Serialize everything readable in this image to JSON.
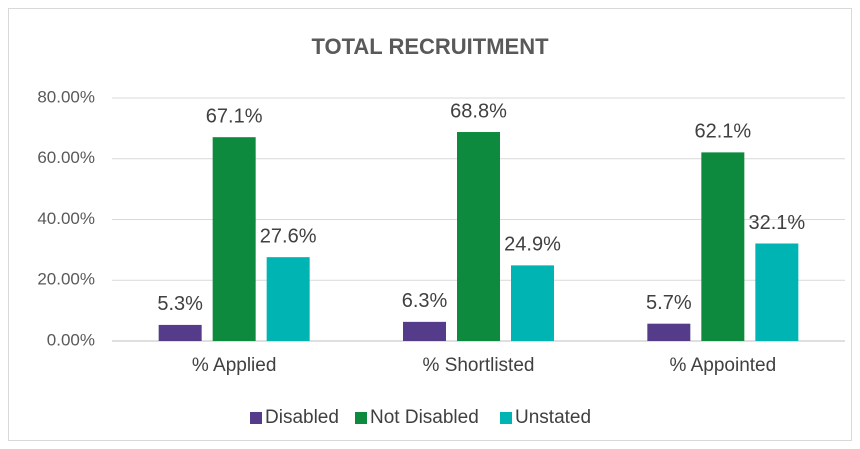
{
  "chart_data": {
    "type": "bar",
    "title": "TOTAL RECRUITMENT",
    "categories": [
      "% Applied",
      "% Shortlisted",
      "% Appointed"
    ],
    "series": [
      {
        "name": "Disabled",
        "color": "#553c8b",
        "values": [
          5.3,
          6.3,
          5.7
        ],
        "value_labels": [
          "5.3%",
          "6.3%",
          "5.7%"
        ]
      },
      {
        "name": "Not Disabled",
        "color": "#0e8a3e",
        "values": [
          67.1,
          68.8,
          62.1
        ],
        "value_labels": [
          "67.1%",
          "68.8%",
          "62.1%"
        ]
      },
      {
        "name": "Unstated",
        "color": "#00b4b4",
        "values": [
          27.6,
          24.9,
          32.1
        ],
        "value_labels": [
          "27.6%",
          "24.9%",
          "32.1%"
        ]
      }
    ],
    "ylim": [
      0,
      80
    ],
    "yticks": [
      {
        "value": 0,
        "label": "0.00%"
      },
      {
        "value": 20,
        "label": "20.00%"
      },
      {
        "value": 40,
        "label": "40.00%"
      },
      {
        "value": 60,
        "label": "60.00%"
      },
      {
        "value": 80,
        "label": "80.00%"
      }
    ],
    "grid": true,
    "legend": "bottom"
  }
}
